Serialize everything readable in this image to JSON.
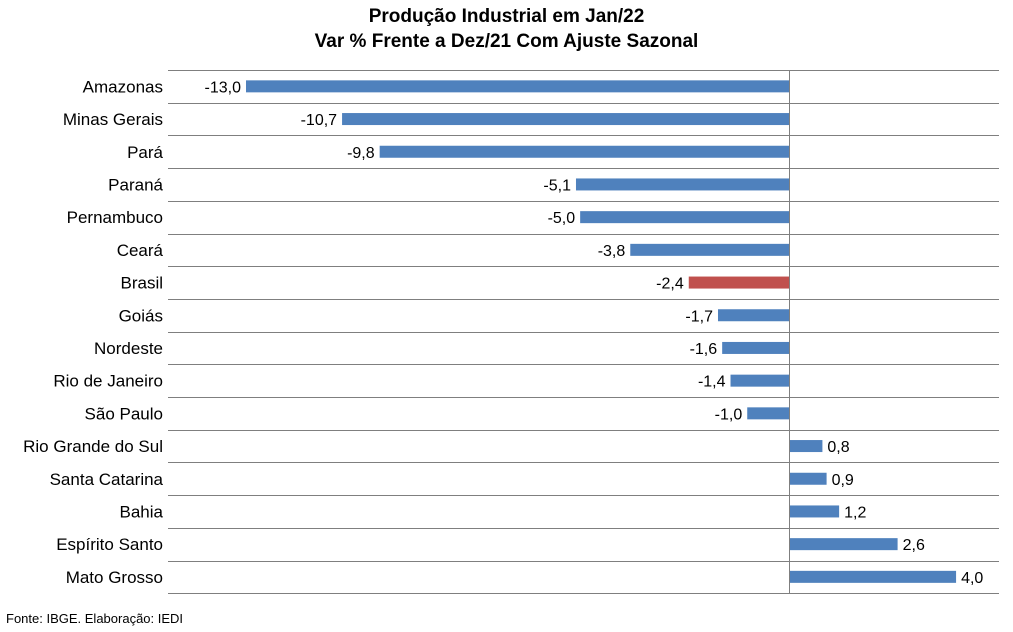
{
  "title_line1": "Produção Industrial em Jan/22",
  "title_line2": "Var % Frente a Dez/21 Com Ajuste Sazonal",
  "footer": "Fonte: IBGE. Elaboração: IEDI",
  "colors": {
    "default_bar": "#4f81bd",
    "highlight_bar": "#c0504d",
    "gridline": "#7f7f7f"
  },
  "chart_data": {
    "type": "bar",
    "orientation": "horizontal",
    "categories": [
      "Amazonas",
      "Minas Gerais",
      "Pará",
      "Paraná",
      "Pernambuco",
      "Ceará",
      "Brasil",
      "Goiás",
      "Nordeste",
      "Rio de Janeiro",
      "São Paulo",
      "Rio Grande do Sul",
      "Santa Catarina",
      "Bahia",
      "Espírito Santo",
      "Mato Grosso"
    ],
    "values": [
      -13.0,
      -10.7,
      -9.8,
      -5.1,
      -5.0,
      -3.8,
      -2.4,
      -1.7,
      -1.6,
      -1.4,
      -1.0,
      0.8,
      0.9,
      1.2,
      2.6,
      4.0
    ],
    "value_labels": [
      "-13,0",
      "-10,7",
      "-9,8",
      "-5,1",
      "-5,0",
      "-3,8",
      "-2,4",
      "-1,7",
      "-1,6",
      "-1,4",
      "-1,0",
      "0,8",
      "0,9",
      "1,2",
      "2,6",
      "4,0"
    ],
    "highlight": [
      "Brasil"
    ],
    "xlim": [
      -13.0,
      5.0
    ],
    "grid": true,
    "legend": "none",
    "data_labels": true
  }
}
